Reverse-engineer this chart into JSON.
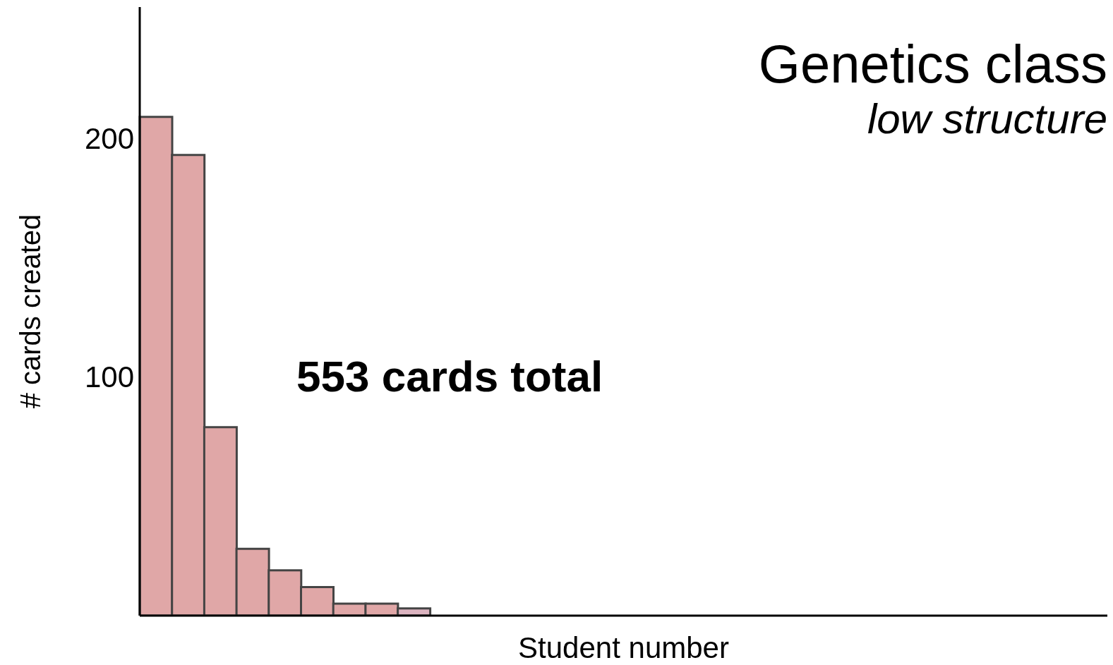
{
  "chart_data": {
    "type": "bar",
    "title": "Genetics class",
    "subtitle": "low structure",
    "xlabel": "Student number",
    "ylabel": "# cards created",
    "annotations": [
      "553 cards total"
    ],
    "categories": [
      null,
      null,
      null,
      null,
      null,
      null,
      null,
      null,
      null,
      null,
      null,
      null,
      null,
      null,
      null,
      null,
      null,
      null,
      null,
      null,
      null,
      null,
      null,
      null,
      null,
      null,
      null,
      null,
      null,
      null
    ],
    "values": [
      209,
      193,
      79,
      28,
      19,
      12,
      5,
      5,
      3,
      0,
      0,
      0,
      0,
      0,
      0,
      0,
      0,
      0,
      0,
      0,
      0,
      0,
      0,
      0,
      0,
      0,
      0,
      0,
      0,
      0
    ],
    "colors": [
      "#e0a7a7",
      "#e0a7a7",
      "#e0a7a7",
      "#e0a7a7",
      "#e0a7a7",
      "#e0a7a7",
      "#e0a7a7",
      "#e0a7a7",
      "#dcb4c0",
      "#e0a7a7",
      "#e0a7a7",
      "#e0a7a7",
      "#e0a7a7",
      "#e0a7a7",
      "#e0a7a7",
      "#e0a7a7",
      "#e0a7a7",
      "#e0a7a7",
      "#e0a7a7",
      "#e0a7a7",
      "#e0a7a7",
      "#e0a7a7",
      "#e0a7a7",
      "#e0a7a7",
      "#e0a7a7",
      "#e0a7a7",
      "#e0a7a7",
      "#e0a7a7",
      "#e0a7a7",
      "#e0a7a7"
    ],
    "ylim": [
      0,
      255
    ],
    "yticks": [
      100,
      200
    ]
  }
}
